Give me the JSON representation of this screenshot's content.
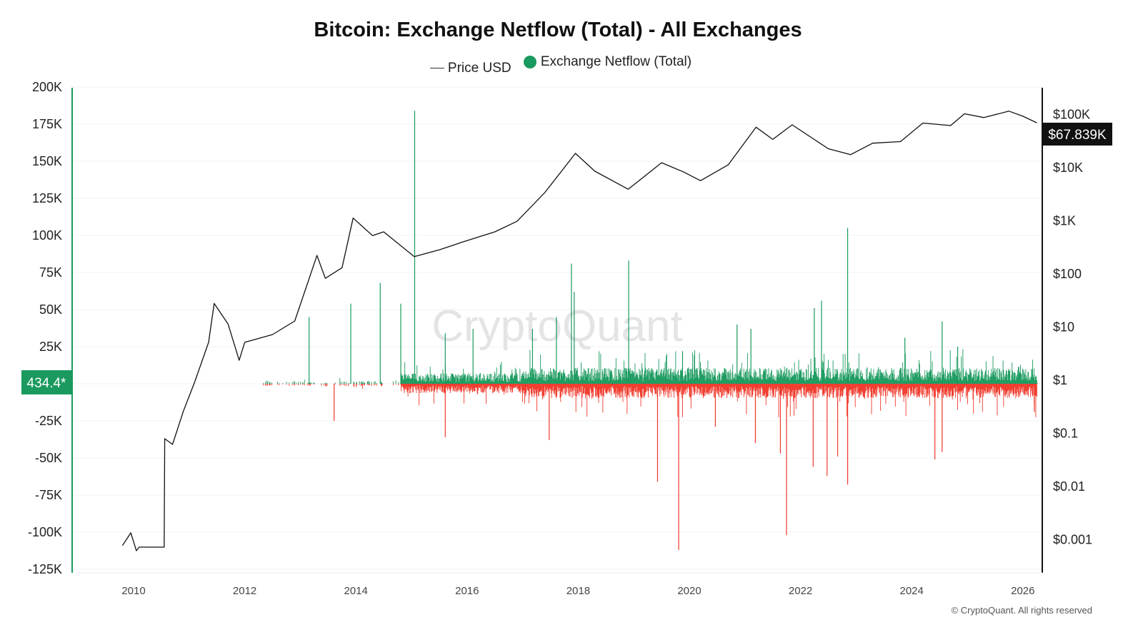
{
  "title": "Bitcoin: Exchange Netflow (Total) - All Exchanges",
  "legend": [
    {
      "label": "Price USD",
      "color": "#333333"
    },
    {
      "label": "Exchange Netflow (Total)",
      "color": "#1a9a5e"
    }
  ],
  "watermark": "CryptoQuant",
  "copyright": "© CryptoQuant. All rights reserved",
  "colors": {
    "positive": "#1a9a5e",
    "negative": "#f0392b",
    "price": "#111111",
    "badge_left": "#1a9a5e",
    "badge_right": "#111111"
  },
  "chart_data": {
    "type": "bar+line",
    "title": "Bitcoin: Exchange Netflow (Total) - All Exchanges",
    "grid": true,
    "legend_position": "top",
    "x_ticks": [
      "2010",
      "2012",
      "2014",
      "2016",
      "2018",
      "2020",
      "2022",
      "2024",
      "2026"
    ],
    "xlim": [
      2009.75,
      2026.35
    ],
    "left_axis": {
      "ticks": [
        "200K",
        "175K",
        "150K",
        "125K",
        "100K",
        "75K",
        "50K",
        "25K",
        "0",
        "-25K",
        "-50K",
        "-75K",
        "-100K",
        "-125K"
      ],
      "ylim": [
        -125000,
        200000
      ],
      "current_label": "434.4*"
    },
    "right_axis": {
      "scale": "log",
      "ticks": [
        "$100K",
        "$10K",
        "$1K",
        "$100",
        "$10",
        "$1",
        "$0.1",
        "$0.01",
        "$0.001"
      ],
      "current_label": "$67.839K"
    },
    "series": [
      {
        "name": "Price USD",
        "type": "line",
        "axis": "right",
        "points": [
          [
            2009.8,
            0.00075
          ],
          [
            2009.95,
            0.0013
          ],
          [
            2010.05,
            0.0006
          ],
          [
            2010.1,
            0.0007
          ],
          [
            2010.55,
            0.0007
          ],
          [
            2010.56,
            0.077
          ],
          [
            2010.7,
            0.06
          ],
          [
            2010.9,
            0.26
          ],
          [
            2011.1,
            0.9
          ],
          [
            2011.35,
            5
          ],
          [
            2011.45,
            27
          ],
          [
            2011.7,
            11
          ],
          [
            2011.9,
            2.3
          ],
          [
            2012.0,
            5
          ],
          [
            2012.5,
            7
          ],
          [
            2012.9,
            12.6
          ],
          [
            2013.3,
            216
          ],
          [
            2013.45,
            80
          ],
          [
            2013.75,
            127
          ],
          [
            2013.95,
            1090
          ],
          [
            2014.3,
            510
          ],
          [
            2014.5,
            600
          ],
          [
            2014.9,
            275
          ],
          [
            2015.05,
            205
          ],
          [
            2015.5,
            275
          ],
          [
            2015.9,
            380
          ],
          [
            2016.5,
            600
          ],
          [
            2016.9,
            950
          ],
          [
            2017.4,
            3300
          ],
          [
            2017.95,
            18000
          ],
          [
            2018.3,
            8300
          ],
          [
            2018.9,
            3800
          ],
          [
            2019.5,
            12000
          ],
          [
            2019.9,
            8000
          ],
          [
            2020.2,
            5500
          ],
          [
            2020.7,
            11000
          ],
          [
            2021.2,
            56000
          ],
          [
            2021.5,
            33000
          ],
          [
            2021.85,
            62000
          ],
          [
            2022.5,
            22000
          ],
          [
            2022.9,
            17000
          ],
          [
            2023.3,
            28000
          ],
          [
            2023.8,
            30000
          ],
          [
            2024.2,
            67000
          ],
          [
            2024.7,
            60000
          ],
          [
            2024.95,
            100000
          ],
          [
            2025.3,
            85000
          ],
          [
            2025.75,
            112000
          ],
          [
            2026.0,
            90000
          ],
          [
            2026.25,
            67839
          ]
        ]
      },
      {
        "name": "Exchange Netflow (Total)",
        "type": "bar",
        "axis": "left",
        "points": [
          [
            2013.15,
            45000
          ],
          [
            2013.9,
            54000
          ],
          [
            2014.43,
            68000
          ],
          [
            2014.8,
            54000
          ],
          [
            2015.05,
            184000
          ],
          [
            2015.6,
            34000
          ],
          [
            2016.1,
            37000
          ],
          [
            2017.17,
            37000
          ],
          [
            2017.6,
            45000
          ],
          [
            2017.87,
            81000
          ],
          [
            2017.92,
            62000
          ],
          [
            2018.9,
            83000
          ],
          [
            2019.87,
            22000
          ],
          [
            2020.85,
            40000
          ],
          [
            2021.1,
            37000
          ],
          [
            2022.24,
            51000
          ],
          [
            2022.37,
            56000
          ],
          [
            2022.84,
            105000
          ],
          [
            2023.87,
            31000
          ],
          [
            2024.54,
            42000
          ],
          [
            2024.82,
            25000
          ],
          [
            2013.6,
            -25000
          ],
          [
            2015.6,
            -36000
          ],
          [
            2017.47,
            -38000
          ],
          [
            2019.42,
            -66000
          ],
          [
            2019.8,
            -112000
          ],
          [
            2020.46,
            -29000
          ],
          [
            2021.18,
            -40000
          ],
          [
            2021.63,
            -47000
          ],
          [
            2021.74,
            -102000
          ],
          [
            2022.22,
            -56000
          ],
          [
            2022.47,
            -62000
          ],
          [
            2022.66,
            -49000
          ],
          [
            2022.84,
            -68000
          ],
          [
            2024.41,
            -51000
          ],
          [
            2024.54,
            -46000
          ],
          [
            2026.2,
            -19000
          ],
          [
            2026.25,
            434.4
          ]
        ]
      }
    ]
  }
}
